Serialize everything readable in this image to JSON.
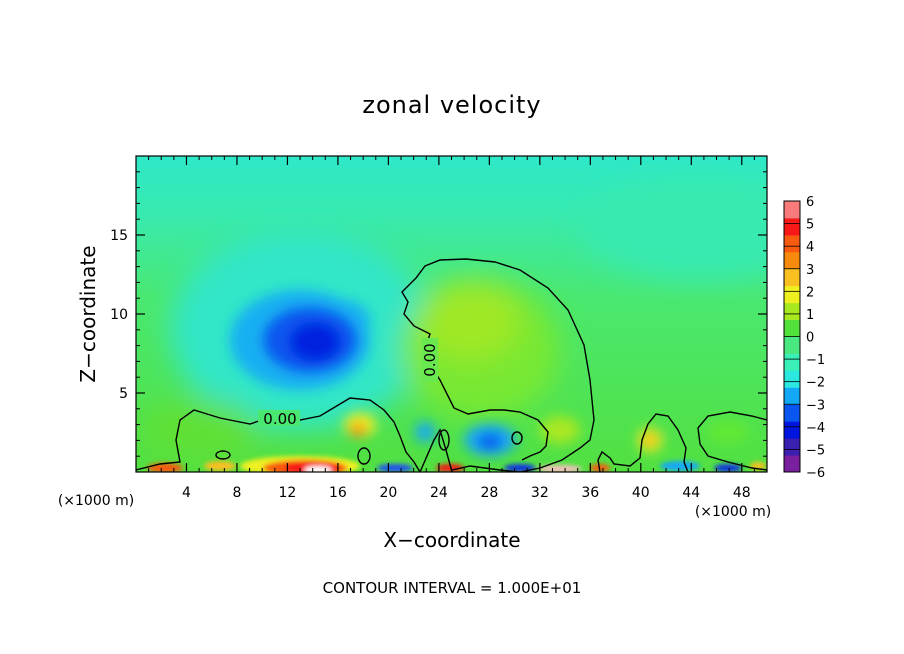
{
  "chart_data": {
    "type": "heatmap",
    "title": "zonal velocity",
    "xlabel": "X−coordinate",
    "ylabel": "Z−coordinate",
    "x_unit_left": "(×1000 m)",
    "x_unit_right": "(×1000 m)",
    "footer": "CONTOUR INTERVAL = 1.000E+01",
    "xlim": [
      0,
      50
    ],
    "ylim": [
      0,
      20
    ],
    "x_ticks": [
      4,
      8,
      12,
      16,
      20,
      24,
      28,
      32,
      36,
      40,
      44,
      48
    ],
    "y_ticks": [
      5,
      10,
      15
    ],
    "contour_labels": [
      "0.00",
      "0.00"
    ],
    "colorbar": {
      "min": -6,
      "max": 6,
      "ticks": [
        6,
        5,
        4,
        3,
        2,
        1,
        0,
        -1,
        -2,
        -3,
        -4,
        -5,
        -6
      ],
      "tick_labels": [
        "6",
        "5",
        "4",
        "3",
        "2",
        "1",
        "0",
        "−1",
        "−2",
        "−3",
        "−4",
        "−5",
        "−6"
      ],
      "colors": [
        "#7a1fa0",
        "#3a1fb0",
        "#0016e0",
        "#0a56f0",
        "#12a8f5",
        "#2ae8e0",
        "#3af0b8",
        "#4ae880",
        "#52e03a",
        "#a8e820",
        "#f0f020",
        "#f8c020",
        "#f88a10",
        "#f85a10",
        "#f81818",
        "#f87a7a"
      ]
    },
    "field_features": [
      {
        "label": "negative core",
        "x": 14.5,
        "z": 8.5,
        "value": -5
      },
      {
        "label": "negative lobe",
        "x": 10,
        "z": 10.5,
        "value": -3
      },
      {
        "label": "positive dome",
        "x": 27,
        "z": 9,
        "value": 1
      },
      {
        "label": "surface max",
        "x": 14.5,
        "z": 0.5,
        "value": 6
      },
      {
        "label": "surface min",
        "x": 27.5,
        "z": 1.5,
        "value": -4
      }
    ]
  }
}
